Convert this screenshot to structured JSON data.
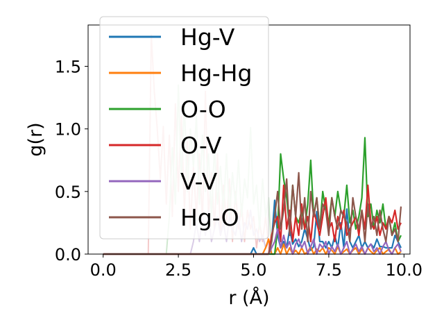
{
  "chart_data": {
    "type": "line",
    "xlabel": "r (Å)",
    "ylabel": "g(r)",
    "xlim": [
      -0.5,
      10.2
    ],
    "ylim": [
      0.0,
      1.83
    ],
    "xticks": [
      0.0,
      2.5,
      5.0,
      7.5,
      10.0
    ],
    "xtick_labels": [
      "0.0",
      "2.5",
      "5.0",
      "7.5",
      "10.0"
    ],
    "yticks": [
      0.0,
      0.5,
      1.0,
      1.5
    ],
    "ytick_labels": [
      "0.0",
      "0.5",
      "1.0",
      "1.5"
    ],
    "grid": false,
    "legend_position": "upper-left",
    "x": [
      0.0,
      0.1,
      0.2,
      0.3,
      0.4,
      0.5,
      0.6,
      0.7,
      0.8,
      0.9,
      1.0,
      1.1,
      1.2,
      1.3,
      1.4,
      1.5,
      1.6,
      1.7,
      1.8,
      1.9,
      2.0,
      2.1,
      2.2,
      2.3,
      2.4,
      2.5,
      2.6,
      2.7,
      2.8,
      2.9,
      3.0,
      3.1,
      3.2,
      3.3,
      3.4,
      3.5,
      3.6,
      3.7,
      3.8,
      3.9,
      4.0,
      4.1,
      4.2,
      4.3,
      4.4,
      4.5,
      4.6,
      4.7,
      4.8,
      4.9,
      5.0,
      5.1,
      5.2,
      5.3,
      5.4,
      5.5,
      5.6,
      5.7,
      5.8,
      5.9,
      6.0,
      6.1,
      6.2,
      6.3,
      6.4,
      6.5,
      6.6,
      6.7,
      6.8,
      6.9,
      7.0,
      7.1,
      7.2,
      7.3,
      7.4,
      7.5,
      7.6,
      7.7,
      7.8,
      7.9,
      8.0,
      8.1,
      8.2,
      8.3,
      8.4,
      8.5,
      8.6,
      8.7,
      8.8,
      8.9,
      9.0,
      9.1,
      9.2,
      9.3,
      9.4,
      9.5,
      9.6,
      9.7,
      9.8,
      9.9
    ],
    "series": [
      {
        "name": "Hg-V",
        "color": "#1f77b4",
        "values": [
          0,
          0,
          0,
          0,
          0,
          0,
          0,
          0,
          0,
          0,
          0,
          0,
          0,
          0,
          0,
          0,
          0,
          0,
          0,
          0,
          0,
          0,
          0,
          0,
          0,
          0,
          0,
          0,
          0,
          0,
          0,
          0,
          0,
          0,
          0,
          0,
          0,
          0,
          0,
          0,
          0,
          0,
          0,
          0,
          0,
          0,
          0,
          0,
          0,
          0,
          0.05,
          0,
          0,
          0,
          0,
          0,
          0.1,
          0.43,
          0.15,
          0.05,
          0.1,
          0.05,
          0.2,
          0.08,
          0.12,
          0.06,
          0.1,
          0.2,
          0.12,
          0.03,
          0.06,
          0.34,
          0.1,
          0.1,
          0.05,
          0.1,
          0.05,
          0.15,
          0.05,
          0.25,
          0.05,
          0.36,
          0.1,
          0.05,
          0.1,
          0.15,
          0.05,
          0.1,
          0.05,
          0.08,
          0.05,
          0.12,
          0.06,
          0.06,
          0.05,
          0.05,
          0.05,
          0.15,
          0.1,
          0.05
        ]
      },
      {
        "name": "Hg-Hg",
        "color": "#ff7f0e",
        "values": [
          0,
          0,
          0,
          0,
          0,
          0,
          0,
          0,
          0,
          0,
          0,
          0,
          0,
          0,
          0,
          0,
          0,
          0,
          0,
          0,
          0,
          0,
          0,
          0,
          0,
          0,
          0,
          0,
          0,
          0,
          0,
          0,
          0,
          0,
          0,
          0,
          0,
          0,
          0,
          0,
          0,
          0,
          0,
          0,
          0,
          0,
          0,
          0,
          0,
          0,
          0,
          0,
          0,
          0,
          0.05,
          0.12,
          0,
          0,
          0.05,
          0,
          0.08,
          0,
          0.05,
          0,
          0.03,
          0,
          0.05,
          0,
          0.02,
          0.06,
          0,
          0.04,
          0.02,
          0.05,
          0,
          0.05,
          0.03,
          0,
          0.06,
          0,
          0.02,
          0.04,
          0,
          0.03,
          0.05,
          0,
          0.04,
          0,
          0.05,
          0.02,
          0,
          0.03,
          0.05,
          0,
          0.02,
          0.04,
          0,
          0.05,
          0,
          0.02
        ]
      },
      {
        "name": "O-O",
        "color": "#2ca02c",
        "values": [
          0,
          0,
          0,
          0,
          0,
          0,
          0,
          0,
          0,
          0,
          0,
          0,
          0,
          0,
          0,
          0,
          0,
          0,
          0,
          0,
          0,
          0,
          0,
          0,
          0,
          0,
          0,
          0,
          0,
          0,
          0,
          0,
          0,
          0,
          0,
          0,
          0,
          0,
          0,
          0,
          0,
          0,
          0,
          0,
          0,
          0,
          0,
          0,
          0,
          0,
          0,
          0,
          0,
          0,
          0,
          0,
          0,
          0,
          0.2,
          0.8,
          0.6,
          0.45,
          0.2,
          0.55,
          0.3,
          0.25,
          0.35,
          0.2,
          0.4,
          0.75,
          0.3,
          0.45,
          0.2,
          0.5,
          0.35,
          0.25,
          0.45,
          0.3,
          0.5,
          0.35,
          0.3,
          0.55,
          0.25,
          0.35,
          0.2,
          0.3,
          0.45,
          0.93,
          0.3,
          0.4,
          0.2,
          0.35,
          0.25,
          0.4,
          0.2,
          0.3,
          0.15,
          0.25,
          0.1,
          0.15
        ]
      },
      {
        "name": "O-V",
        "color": "#d62728",
        "values": [
          0,
          0,
          0,
          0,
          0,
          0,
          0,
          0,
          0,
          0,
          0,
          0,
          0,
          0,
          0,
          0,
          0,
          0,
          0,
          0,
          0,
          0,
          0,
          0,
          0,
          0,
          0,
          0,
          0,
          0,
          0,
          0,
          0,
          0,
          0,
          0,
          0,
          0,
          0,
          0,
          0,
          0,
          0,
          0,
          0,
          0,
          0,
          0,
          0,
          0,
          0,
          0,
          0,
          0,
          0,
          0,
          0.15,
          0.25,
          0.3,
          0.1,
          0.55,
          0.2,
          0.35,
          0.1,
          0.3,
          0.15,
          0.4,
          0.2,
          0.3,
          0.1,
          0.35,
          0.25,
          0.15,
          0.3,
          0.45,
          0.2,
          0.25,
          0.1,
          0.3,
          0.2,
          0.35,
          0.15,
          0.2,
          0.25,
          0.3,
          0.15,
          0.35,
          0.2,
          0.55,
          0.25,
          0.2,
          0.3,
          0.15,
          0.25,
          0.2,
          0.3,
          0.25,
          0.35,
          0.2,
          0.25
        ]
      },
      {
        "name": "V-V",
        "color": "#9467bd",
        "values": [
          0,
          0,
          0,
          0,
          0,
          0,
          0,
          0,
          0,
          0,
          0,
          0,
          0,
          0,
          0,
          0,
          0,
          0,
          0,
          0,
          0,
          0,
          0,
          0,
          0,
          0,
          0,
          0,
          0,
          0,
          0,
          0,
          0,
          0,
          0,
          0,
          0,
          0,
          0,
          0,
          0,
          0,
          0,
          0,
          0,
          0,
          0,
          0,
          0,
          0,
          0,
          0,
          0,
          0,
          0,
          0,
          0.05,
          0.1,
          0.2,
          0.05,
          0.15,
          0.05,
          0.1,
          0,
          0.08,
          0.12,
          0.05,
          0.1,
          0,
          0.06,
          0.12,
          0,
          0.08,
          0.05,
          0.1,
          0,
          0.06,
          0.02,
          0.08,
          0,
          0.05,
          0.1,
          0,
          0.04,
          0.08,
          0.02,
          0.06,
          0,
          0.05,
          0.08,
          0.02,
          0.05,
          0,
          0.06,
          0.1,
          0.03,
          0,
          0.05,
          0.08,
          0.02
        ]
      },
      {
        "name": "Hg-O",
        "color": "#8c564b",
        "values": [
          0,
          0,
          0,
          0,
          0,
          0,
          0,
          0,
          0,
          0,
          0,
          0,
          0,
          0,
          0,
          0,
          0,
          0,
          0,
          0,
          0,
          0,
          0,
          0,
          0,
          0,
          0,
          0,
          0,
          0,
          0,
          0,
          0,
          0,
          0,
          0,
          0,
          0,
          0,
          0,
          0,
          0,
          0,
          0,
          0,
          0,
          0,
          0,
          0,
          0,
          0,
          0,
          0,
          0,
          0,
          0,
          0.1,
          0.3,
          0.5,
          0.2,
          0.35,
          0.6,
          0.15,
          0.55,
          0.3,
          0.65,
          0.2,
          0.45,
          0.1,
          0.5,
          0.3,
          0.45,
          0.2,
          0.4,
          0.35,
          0.15,
          0.45,
          0.3,
          0.2,
          0.35,
          0.3,
          0.25,
          0.1,
          0.45,
          0.3,
          0.2,
          0.35,
          0.1,
          0.4,
          0.2,
          0.3,
          0.15,
          0.35,
          0.2,
          0.1,
          0.3,
          0.15,
          0.2,
          0.1,
          0.38
        ]
      }
    ],
    "faded_series": [
      {
        "color": "#f4c9c9",
        "values": [
          0,
          0,
          0,
          0,
          0,
          0,
          0,
          0,
          0,
          0,
          0,
          0,
          0,
          0,
          0,
          0,
          1.75,
          1.3,
          1.0,
          0.6,
          1.02,
          0.4,
          0.95,
          0.3,
          1.2,
          0.5,
          1.1,
          0.35,
          0.9,
          0.2,
          0.7,
          0.3,
          0.8,
          0.25,
          1.3,
          0.3,
          0.65,
          0.2,
          0.8,
          0.15,
          0.55,
          0.25,
          0.6,
          0.1,
          0.5,
          0.2,
          0.4,
          0.1,
          0.35,
          0.2,
          0.3,
          0.05,
          0.25,
          0.1,
          0.3,
          0.05,
          0,
          0,
          0,
          0,
          0,
          0,
          0,
          0,
          0,
          0,
          0,
          0,
          0,
          0,
          0,
          0,
          0,
          0,
          0,
          0,
          0,
          0,
          0,
          0,
          0,
          0,
          0,
          0,
          0,
          0,
          0,
          0,
          0,
          0,
          0,
          0,
          0,
          0,
          0,
          0,
          0,
          0,
          0,
          0
        ]
      },
      {
        "color": "#cfe8cf",
        "values": [
          0,
          0,
          0,
          0,
          0,
          0,
          0,
          0,
          0,
          0,
          0,
          0,
          0,
          0,
          0,
          0,
          0,
          0,
          0,
          0,
          0,
          0,
          0.3,
          0.85,
          0.4,
          1.35,
          0.6,
          1.2,
          0.5,
          1.0,
          0.7,
          1.1,
          0.4,
          0.95,
          0.5,
          0.8,
          0.3,
          0.85,
          0.4,
          0.7,
          0.35,
          0.8,
          0.3,
          0.65,
          0.4,
          0.75,
          0.3,
          0.6,
          0.45,
          1.01,
          0.4,
          0.55,
          0.2,
          0.6,
          0.3,
          0.45,
          0,
          0,
          0,
          0,
          0,
          0,
          0,
          0,
          0,
          0,
          0,
          0,
          0,
          0,
          0,
          0,
          0,
          0,
          0,
          0,
          0,
          0,
          0,
          0,
          0,
          0,
          0,
          0,
          0,
          0,
          0,
          0,
          0,
          0,
          0,
          0,
          0,
          0,
          0,
          0,
          0,
          0,
          0,
          0
        ]
      },
      {
        "color": "#d9cbe6",
        "values": [
          0,
          0,
          0,
          0,
          0,
          0,
          0,
          0,
          0,
          0,
          0,
          0,
          0,
          0,
          0,
          0,
          0,
          0,
          0,
          0,
          0,
          0,
          0,
          0,
          0,
          0,
          0,
          0,
          0,
          0,
          0.1,
          0.25,
          0.1,
          0.3,
          0.15,
          0.35,
          0.1,
          0.2,
          0.3,
          0.15,
          0.25,
          0.1,
          0.3,
          0.2,
          0.15,
          0.3,
          0.1,
          0.25,
          0.2,
          0.35,
          0.15,
          0.2,
          0.1,
          0.15,
          0.05,
          0.1,
          0,
          0,
          0,
          0,
          0,
          0,
          0,
          0,
          0,
          0,
          0,
          0,
          0,
          0,
          0,
          0,
          0,
          0,
          0,
          0,
          0,
          0,
          0,
          0,
          0,
          0,
          0,
          0,
          0,
          0,
          0,
          0,
          0,
          0,
          0,
          0,
          0,
          0,
          0,
          0,
          0,
          0,
          0,
          0
        ]
      }
    ]
  }
}
